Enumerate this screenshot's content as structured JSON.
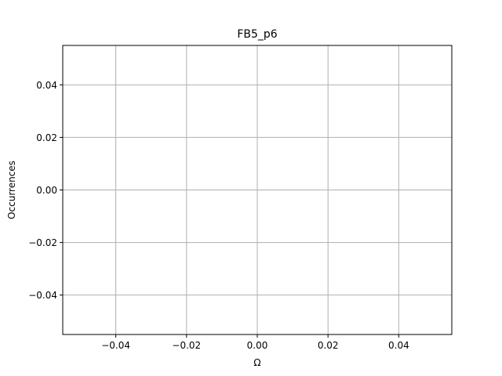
{
  "chart_data": {
    "type": "line",
    "title": "FB5_p6",
    "xlabel": "Ω",
    "ylabel": "Occurrences",
    "xlim": [
      -0.055,
      0.055
    ],
    "ylim": [
      -0.055,
      0.055
    ],
    "x_ticks": [
      -0.04,
      -0.02,
      0.0,
      0.02,
      0.04
    ],
    "x_tick_labels": [
      "−0.04",
      "−0.02",
      "0.00",
      "0.02",
      "0.04"
    ],
    "y_ticks": [
      -0.04,
      -0.02,
      0.0,
      0.02,
      0.04
    ],
    "y_tick_labels": [
      "−0.04",
      "−0.02",
      "0.00",
      "0.02",
      "0.04"
    ],
    "grid": true,
    "series": []
  }
}
